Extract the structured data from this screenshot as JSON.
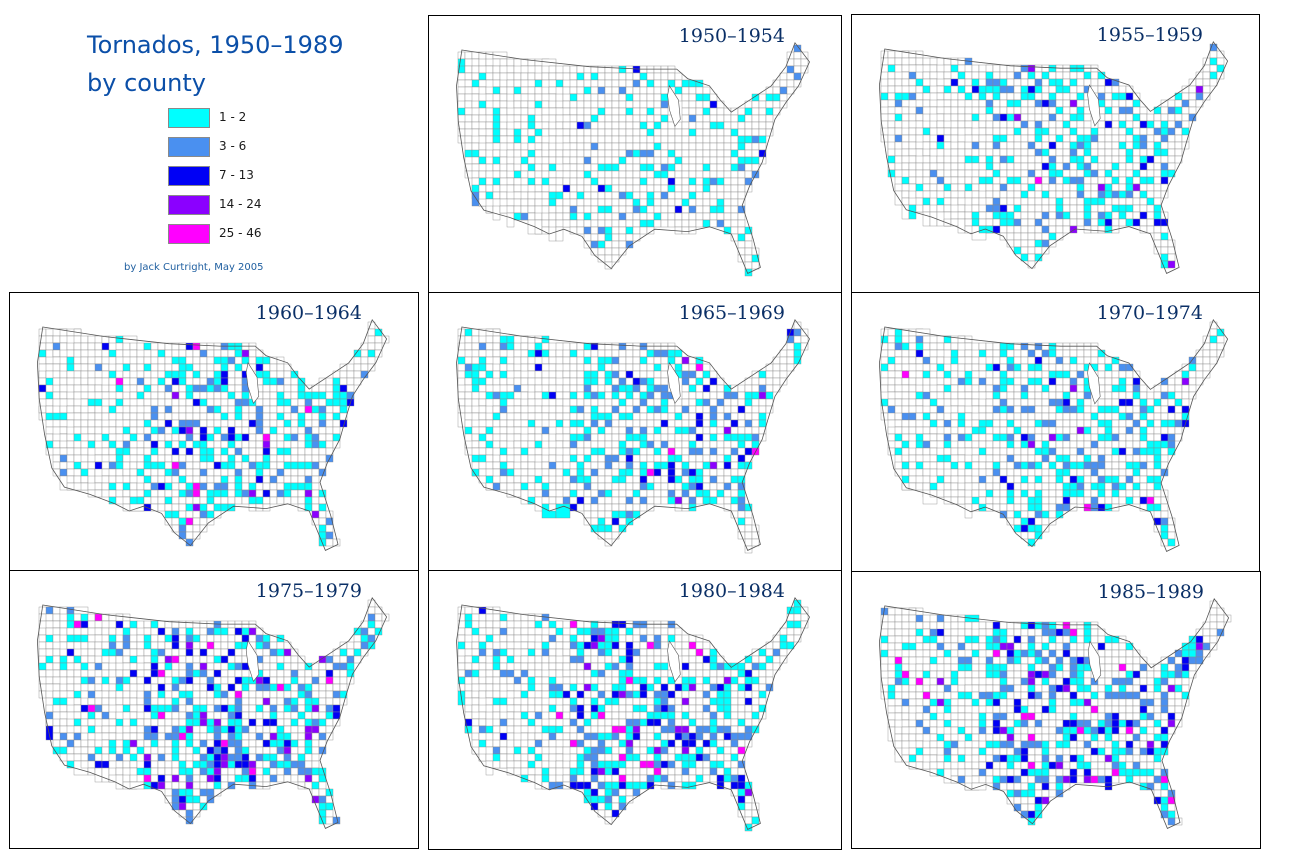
{
  "title": {
    "line1": "Tornados, 1950–1989",
    "line2": "by county"
  },
  "legend": {
    "items": [
      {
        "label": "1 - 2",
        "color": "#00FFFF"
      },
      {
        "label": "3 - 6",
        "color": "#4A90F0"
      },
      {
        "label": "7 - 13",
        "color": "#0000F5"
      },
      {
        "label": "14 - 24",
        "color": "#8B00FF"
      },
      {
        "label": "25 - 46",
        "color": "#FF00FF"
      }
    ]
  },
  "credit": "by Jack Curtright, May 2005",
  "colors": {
    "border": "#888888",
    "title": "#0b4fa8",
    "panel_title": "#0a2f66"
  },
  "panels": [
    {
      "period": "1950–1954",
      "pattern": "light"
    },
    {
      "period": "1955–1959",
      "pattern": "medium"
    },
    {
      "period": "1960–1964",
      "pattern": "medium"
    },
    {
      "period": "1965–1969",
      "pattern": "medium"
    },
    {
      "period": "1970–1974",
      "pattern": "medium"
    },
    {
      "period": "1975–1979",
      "pattern": "heavy"
    },
    {
      "period": "1980–1984",
      "pattern": "heavy"
    },
    {
      "period": "1985–1989",
      "pattern": "heavy"
    }
  ]
}
